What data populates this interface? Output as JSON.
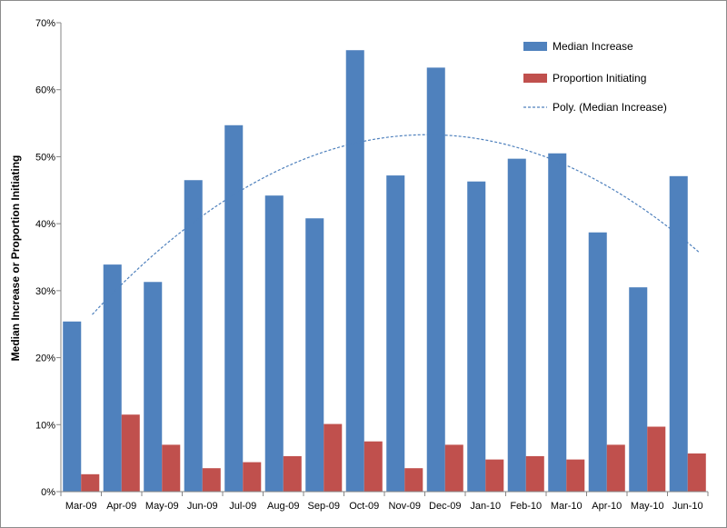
{
  "chart_data": {
    "type": "bar",
    "title": "",
    "xlabel": "",
    "ylabel": "Median Increase or Proportion Initiating",
    "ylim": [
      0,
      70
    ],
    "y_tick_step": 10,
    "y_tick_labels": [
      "0%",
      "10%",
      "20%",
      "30%",
      "40%",
      "50%",
      "60%",
      "70%"
    ],
    "grid": false,
    "legend_position": "top-right",
    "categories": [
      "Mar-09",
      "Apr-09",
      "May-09",
      "Jun-09",
      "Jul-09",
      "Aug-09",
      "Sep-09",
      "Oct-09",
      "Nov-09",
      "Dec-09",
      "Jan-10",
      "Feb-10",
      "Mar-10",
      "Apr-10",
      "May-10",
      "Jun-10"
    ],
    "series": [
      {
        "name": "Median Increase",
        "color": "#4f81bd",
        "values": [
          25.4,
          33.9,
          31.3,
          46.5,
          54.7,
          44.2,
          40.8,
          65.9,
          47.2,
          63.3,
          46.3,
          49.7,
          50.5,
          38.7,
          30.5,
          47.1
        ]
      },
      {
        "name": "Proportion Initiating",
        "color": "#c0504d",
        "values": [
          2.6,
          11.5,
          7.0,
          3.5,
          4.4,
          5.3,
          10.1,
          7.5,
          3.5,
          7.0,
          4.8,
          5.3,
          4.8,
          7.0,
          9.7,
          5.7
        ]
      }
    ],
    "trendline": {
      "name": "Poly. (Median Increase)",
      "color": "#4f81bd",
      "style": "dashed",
      "type": "polynomial",
      "order": 2,
      "of_series": "Median Increase"
    }
  }
}
